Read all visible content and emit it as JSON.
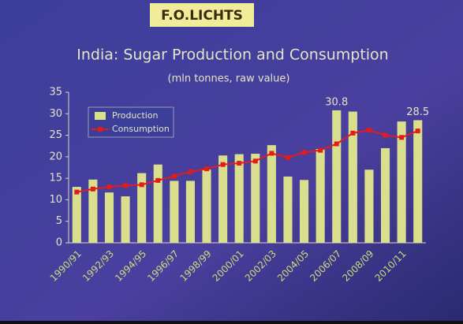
{
  "logo": "F.O.LICHTS",
  "chart_data": {
    "type": "bar_line",
    "title": "India: Sugar Production and Consumption",
    "subtitle": "(mln tonnes, raw value)",
    "categories": [
      "1990/91",
      null,
      "1992/93",
      null,
      "1994/95",
      null,
      "1996/97",
      null,
      "1998/99",
      null,
      "2000/01",
      null,
      "2002/03",
      null,
      "2004/05",
      null,
      "2006/07",
      null,
      "2008/09",
      null,
      "2010/11",
      null
    ],
    "series": [
      {
        "name": "Production",
        "kind": "bar",
        "color": "#d9df8c",
        "values": [
          13,
          14.7,
          11.7,
          10.8,
          16.2,
          18.2,
          14.4,
          14.4,
          17,
          20.3,
          20.6,
          20.7,
          22.7,
          15.4,
          14.6,
          21.8,
          30.8,
          30.5,
          17,
          22,
          28.2,
          28.5
        ],
        "value_labels": [
          null,
          null,
          null,
          null,
          null,
          null,
          null,
          null,
          null,
          null,
          null,
          null,
          null,
          null,
          null,
          null,
          "30.8",
          null,
          null,
          null,
          null,
          "28.5"
        ]
      },
      {
        "name": "Consumption",
        "kind": "line",
        "color": "#e21c1c",
        "values": [
          11.8,
          12.5,
          13,
          13.3,
          13.5,
          14.5,
          15.5,
          16.5,
          17.2,
          18.2,
          18.5,
          19,
          20.8,
          19.8,
          21,
          21.5,
          23,
          25.5,
          26.2,
          25,
          24.5,
          26
        ]
      }
    ],
    "ylim": [
      0,
      35
    ],
    "yticks": [
      0,
      5,
      10,
      15,
      20,
      25,
      30,
      35
    ]
  }
}
